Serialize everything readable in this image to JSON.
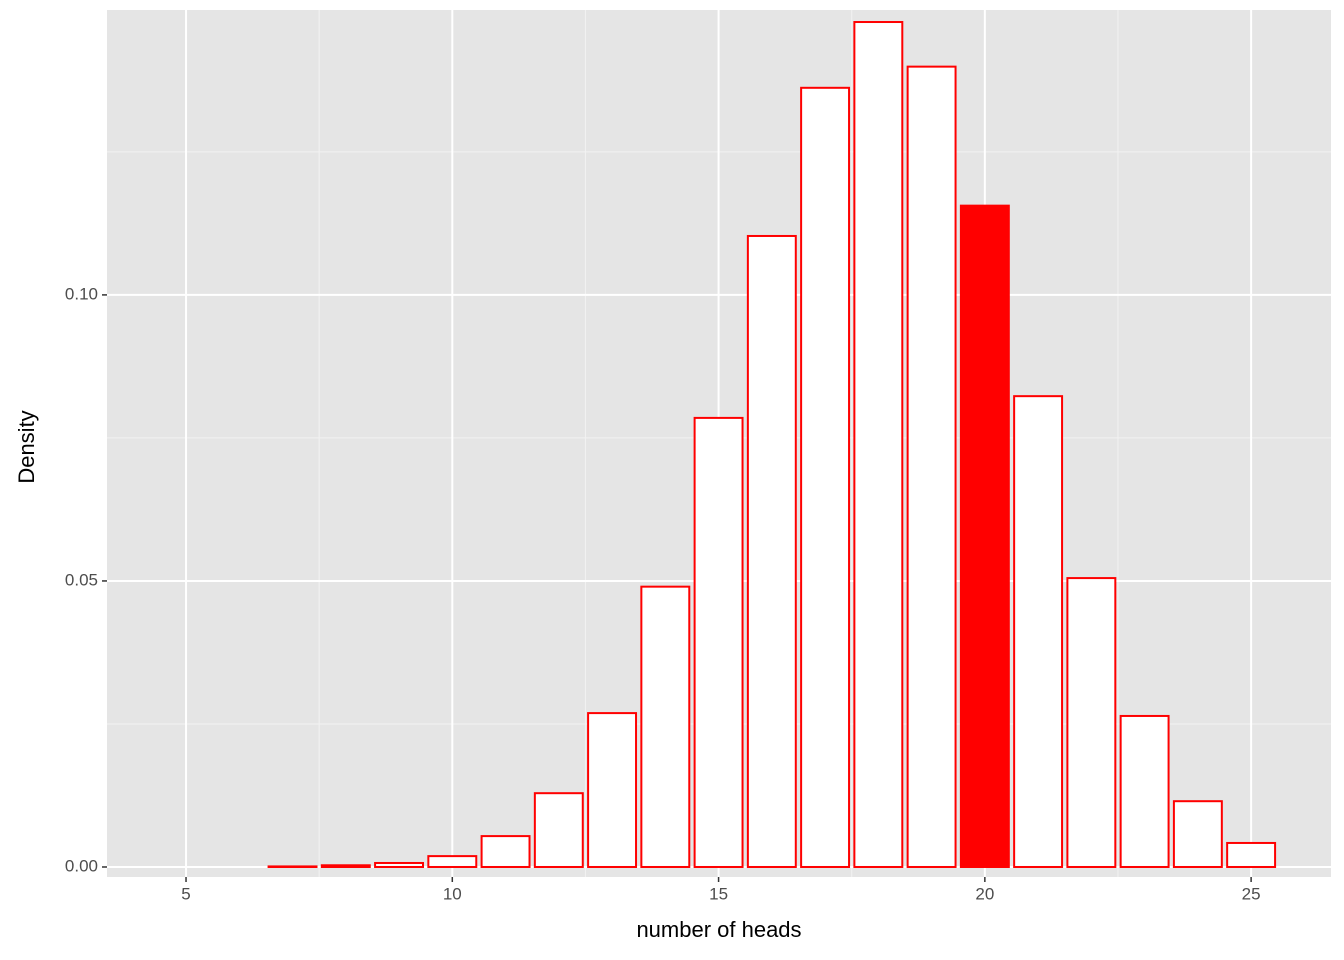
{
  "chart_data": {
    "type": "bar",
    "x_label": "number of heads",
    "y_label": "Density",
    "x": [
      5,
      6,
      7,
      8,
      9,
      10,
      11,
      12,
      13,
      14,
      15,
      16,
      17,
      18,
      19,
      20,
      21,
      22,
      23,
      24,
      25
    ],
    "values": [
      0.0,
      0.0,
      0.0001,
      0.0003,
      0.0007,
      0.0019,
      0.0054,
      0.0129,
      0.0269,
      0.049,
      0.0785,
      0.1103,
      0.1362,
      0.1477,
      0.1399,
      0.1156,
      0.0823,
      0.0505,
      0.0264,
      0.0115,
      0.0042
    ],
    "fills": [
      "#ffffff",
      "#ffffff",
      "#ffffff",
      "#ffffff",
      "#ffffff",
      "#ffffff",
      "#ffffff",
      "#ffffff",
      "#ffffff",
      "#ffffff",
      "#ffffff",
      "#ffffff",
      "#ffffff",
      "#ffffff",
      "#ffffff",
      "#ff0000",
      "#ffffff",
      "#ffffff",
      "#ffffff",
      "#ffffff",
      "#ffffff"
    ],
    "border_color": "#ff0000",
    "bar_width": 0.9,
    "xlim": [
      3.516,
      26.5
    ],
    "ylim": [
      -0.00175,
      0.1498
    ],
    "xticks": [
      5,
      10,
      15,
      20,
      25
    ],
    "yticks": [
      {
        "value": 0,
        "label": "0.00"
      },
      {
        "value": 0.05,
        "label": "0.05"
      },
      {
        "value": 0.1,
        "label": "0.10"
      }
    ],
    "minor_xticks": [
      7.5,
      12.5,
      17.5,
      22.5
    ],
    "minor_yticks": [
      0.025,
      0.075,
      0.125
    ],
    "grid": true
  }
}
